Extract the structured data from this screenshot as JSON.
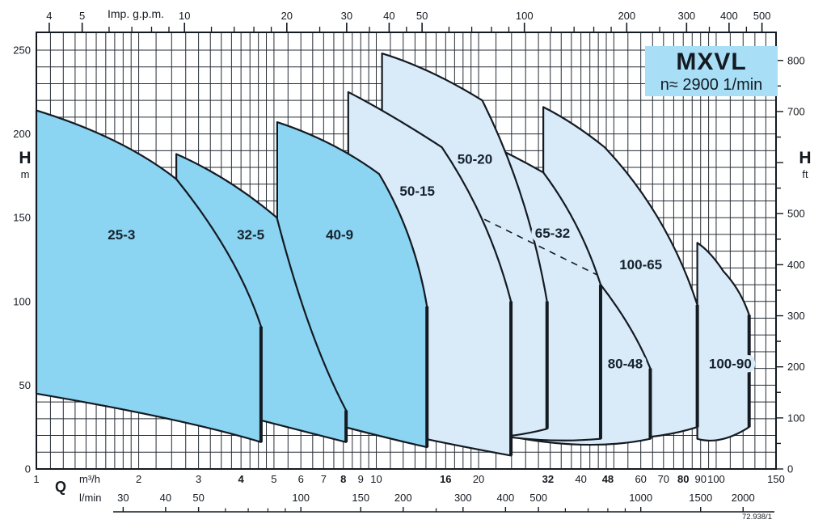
{
  "title_box": {
    "model": "MXVL",
    "speed_label": "n≈ 2900 1/min"
  },
  "units": {
    "q_symbol": "Q",
    "m3h": "m³/h",
    "lmin": "l/min",
    "gpm": "Imp. g.p.m.",
    "head_symbol_left": "H",
    "head_unit_left": "m",
    "head_symbol_right": "H",
    "head_unit_right": "ft"
  },
  "drawing_number": "72.938/1",
  "colors": {
    "dark_fill": "#8bd4f2",
    "light_fill": "#d9ebf9",
    "ink": "#141a21",
    "grid": "#262d36",
    "title_bg": "#a8def6"
  },
  "chart_data": {
    "type": "area",
    "title": "MXVL",
    "subtitle": "n≈ 2900 1/min",
    "description": "Pump family coverage chart: head H (m / ft) versus flow Q (m³/h, l/min, Imp. g.p.m.), log flow scale, linear head scale",
    "x_axis": {
      "label": "Q",
      "unit": "m³/h",
      "scale": "log",
      "min": 1,
      "max": 150,
      "labels": [
        1,
        2,
        3,
        4,
        5,
        6,
        7,
        8,
        9,
        10,
        16,
        20,
        32,
        40,
        48,
        60,
        70,
        80,
        90,
        100,
        150
      ],
      "bold_labels": [
        4,
        8,
        16,
        32,
        48,
        80
      ],
      "minor_grid": [
        1.1,
        1.2,
        1.3,
        1.4,
        1.5,
        1.6,
        1.7,
        1.8,
        1.9,
        2,
        2.25,
        2.5,
        2.75,
        3,
        3.25,
        3.5,
        3.75,
        4,
        4.25,
        4.5,
        4.75,
        5,
        5.5,
        6,
        6.5,
        7,
        7.5,
        8,
        8.5,
        9,
        9.5,
        10,
        11,
        12,
        13,
        14,
        15,
        16,
        17,
        18,
        19,
        20,
        22.5,
        25,
        27.5,
        30,
        32.5,
        35,
        37.5,
        40,
        42.5,
        45,
        47.5,
        50,
        55,
        60,
        65,
        70,
        75,
        80,
        85,
        90,
        95,
        100,
        110,
        120,
        130,
        140
      ]
    },
    "x_axis_lmin": {
      "unit": "l/min",
      "factor_to_m3h": 0.06,
      "labels": [
        30,
        40,
        50,
        100,
        150,
        200,
        300,
        400,
        500,
        1000,
        1500,
        2000
      ],
      "minor_ticks": [
        60,
        70,
        80,
        90,
        250,
        600,
        700,
        800,
        900
      ]
    },
    "x_axis_gpm": {
      "unit": "Imp. g.p.m.",
      "factor_to_m3h": 0.27276,
      "labels": [
        4,
        5,
        10,
        20,
        30,
        40,
        50,
        100,
        200,
        300,
        400,
        500
      ],
      "minor_ticks": [
        6,
        7,
        8,
        9,
        12,
        14,
        16,
        18,
        25,
        35,
        45,
        60,
        70,
        80,
        90,
        120,
        140,
        160,
        180,
        250,
        350,
        450
      ]
    },
    "y_axis": {
      "label": "H",
      "unit": "m",
      "scale": "linear",
      "min": 0,
      "max": 260.6,
      "labels": [
        0,
        50,
        100,
        150,
        200,
        250
      ],
      "grid_step": 10
    },
    "y_axis_ft": {
      "unit": "ft",
      "labels": [
        0,
        100,
        200,
        300,
        400,
        500,
        700,
        800
      ],
      "tick_step": 50,
      "omitted_label": 600
    },
    "envelopes": [
      {
        "model": "100-90",
        "shade": "light",
        "label_pos": [
          110,
          63
        ],
        "outline": [
          [
            "M",
            88,
            135
          ],
          [
            "Q",
            96,
            130,
            105,
            118
          ],
          [
            "Q",
            118,
            107,
            125,
            92
          ],
          [
            "L",
            125,
            25
          ],
          [
            "Q",
            103,
            14,
            88,
            18
          ],
          [
            "Z"
          ]
        ]
      },
      {
        "model": "100-65",
        "shade": "light",
        "label_pos": [
          60,
          122
        ],
        "outline": [
          [
            "M",
            31,
            216
          ],
          [
            "Q",
            38,
            207,
            47,
            192
          ],
          [
            "Q",
            72,
            152,
            88,
            98
          ],
          [
            "L",
            88,
            25
          ],
          [
            "Q",
            55,
            12,
            31,
            24
          ],
          [
            "Z"
          ]
        ]
      },
      {
        "model": "80-48",
        "shade": "light",
        "label_pos": [
          54,
          63
        ],
        "outline": [
          [
            "M",
            24,
            130
          ],
          [
            "Q",
            33,
            124,
            45.7,
            110
          ],
          [
            "Q",
            57,
            85,
            64,
            60
          ],
          [
            "L",
            64,
            18
          ],
          [
            "Q",
            42,
            10,
            24,
            20
          ],
          [
            "Z"
          ]
        ]
      },
      {
        "model": "65-32",
        "shade": "light",
        "label_pos": [
          33,
          141
        ],
        "outline": [
          [
            "M",
            16,
            205
          ],
          [
            "Q",
            22,
            194,
            31,
            177
          ],
          [
            "Q",
            40,
            147,
            45.7,
            110
          ],
          [
            "L",
            45.7,
            18
          ],
          [
            "Q",
            28,
            14,
            16,
            26
          ],
          [
            "Z"
          ]
        ]
      },
      {
        "model": "50-20",
        "shade": "light",
        "label_pos": [
          19.5,
          185
        ],
        "outline": [
          [
            "M",
            10.4,
            248
          ],
          [
            "Q",
            14.5,
            239,
            20.5,
            220
          ],
          [
            "Q",
            28,
            165,
            31.8,
            100
          ],
          [
            "L",
            31.8,
            24
          ],
          [
            "Q",
            19,
            12,
            10.4,
            26
          ],
          [
            "Z"
          ]
        ]
      },
      {
        "model": "50-15",
        "shade": "light",
        "label_pos": [
          13.2,
          166
        ],
        "outline": [
          [
            "M",
            8.27,
            225
          ],
          [
            "Q",
            11,
            212,
            15.6,
            192
          ],
          [
            "Q",
            21.5,
            150,
            24.9,
            100
          ],
          [
            "L",
            24.9,
            8
          ],
          [
            "Q",
            15,
            16,
            8.27,
            28
          ],
          [
            "Z"
          ]
        ]
      },
      {
        "model": "40-9",
        "shade": "dark",
        "label_pos": [
          7.8,
          140
        ],
        "outline": [
          [
            "M",
            5.11,
            207
          ],
          [
            "Q",
            7.5,
            196,
            10.2,
            176
          ],
          [
            "Q",
            13,
            140,
            14.1,
            97
          ],
          [
            "L",
            14.1,
            13
          ],
          [
            "Q",
            9,
            22,
            5.11,
            36
          ],
          [
            "Z"
          ]
        ]
      },
      {
        "model": "32-5",
        "shade": "dark",
        "label_pos": [
          4.27,
          140
        ],
        "outline": [
          [
            "M",
            2.58,
            188
          ],
          [
            "Q",
            3.7,
            174,
            5.1,
            150
          ],
          [
            "Q",
            6.3,
            78,
            8.15,
            35
          ],
          [
            "L",
            8.15,
            16
          ],
          [
            "Q",
            5,
            27,
            2.58,
            42
          ],
          [
            "Z"
          ]
        ]
      },
      {
        "model": "25-3",
        "shade": "dark",
        "label_pos": [
          1.78,
          140
        ],
        "outline": [
          [
            "M",
            1,
            214
          ],
          [
            "Q",
            1.8,
            198,
            2.58,
            173
          ],
          [
            "Q",
            3.9,
            128,
            4.58,
            85
          ],
          [
            "L",
            4.58,
            16
          ],
          [
            "Q",
            2.7,
            30,
            1,
            45
          ],
          [
            "Z"
          ]
        ]
      }
    ],
    "dashed_line": {
      "from": [
        20.8,
        149
      ],
      "to": [
        44.5,
        116
      ]
    }
  }
}
